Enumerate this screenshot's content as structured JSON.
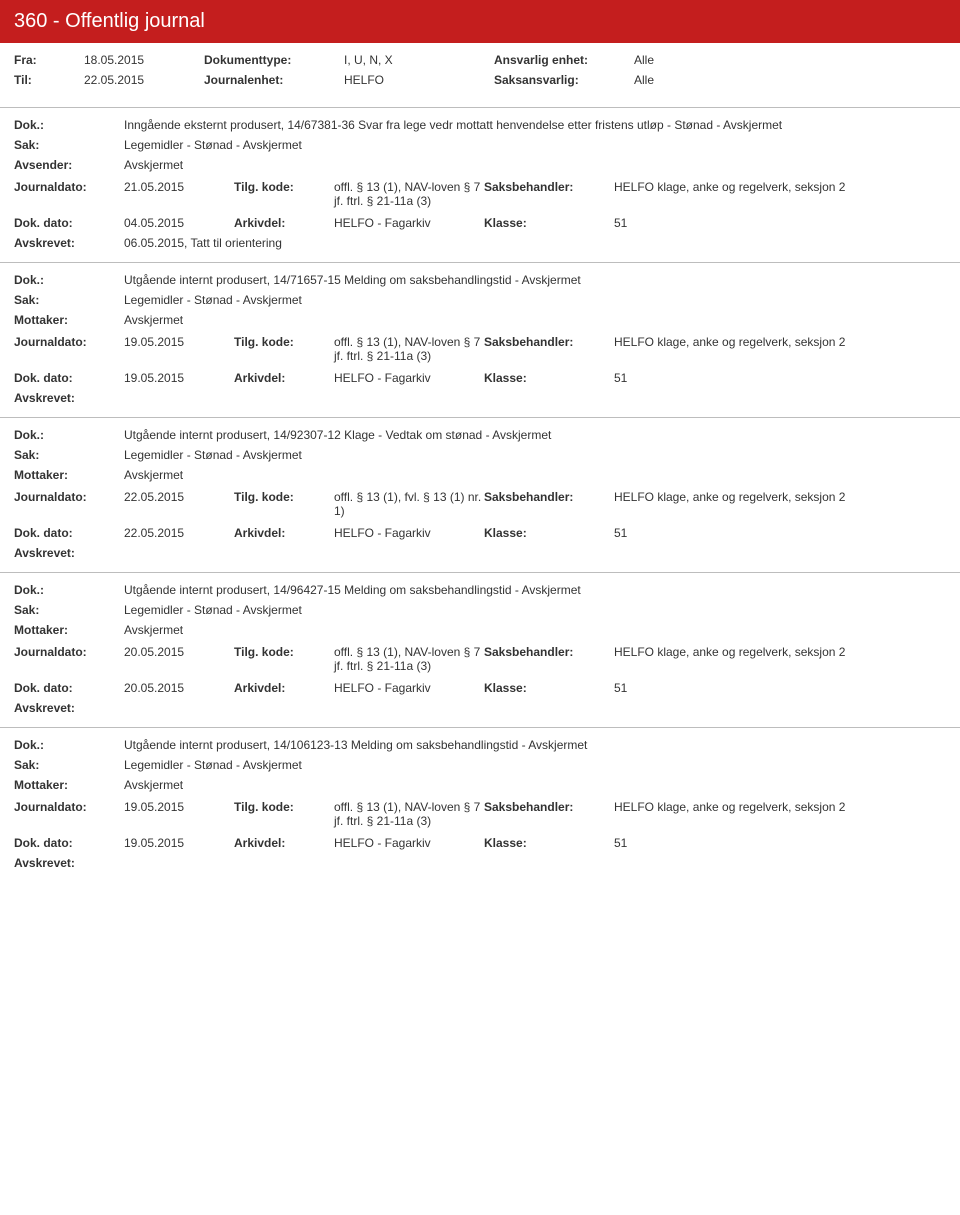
{
  "header": {
    "title": "360 - Offentlig journal"
  },
  "filters": {
    "fra_lbl": "Fra:",
    "fra_val": "18.05.2015",
    "til_lbl": "Til:",
    "til_val": "22.05.2015",
    "doktype_lbl": "Dokumenttype:",
    "doktype_val": "I, U, N, X",
    "journ_lbl": "Journalenhet:",
    "journ_val": "HELFO",
    "ansv_lbl": "Ansvarlig enhet:",
    "ansv_val": "Alle",
    "saksa_lbl": "Saksansvarlig:",
    "saksa_val": "Alle"
  },
  "labels": {
    "dok": "Dok.:",
    "sak": "Sak:",
    "avsender": "Avsender:",
    "mottaker": "Mottaker:",
    "journaldato": "Journaldato:",
    "tilgkode": "Tilg. kode:",
    "saksbeh": "Saksbehandler:",
    "dokdato": "Dok. dato:",
    "arkivdel": "Arkivdel:",
    "klasse": "Klasse:",
    "avskrevet": "Avskrevet:"
  },
  "entries": [
    {
      "dok": "Inngående eksternt produsert, 14/67381-36 Svar fra lege vedr mottatt henvendelse etter fristens utløp - Stønad - Avskjermet",
      "sak": "Legemidler - Stønad - Avskjermet",
      "party_lbl": "Avsender:",
      "party_val": "Avskjermet",
      "journaldato": "21.05.2015",
      "tilgkode": "offl. § 13 (1), NAV-loven § 7 jf. ftrl. § 21-11a (3)",
      "saksbeh": "HELFO klage, anke og regelverk, seksjon 2",
      "dokdato": "04.05.2015",
      "arkivdel": "HELFO - Fagarkiv",
      "klasse": "51",
      "avskrevet": "06.05.2015, Tatt til orientering"
    },
    {
      "dok": "Utgående internt produsert, 14/71657-15 Melding om saksbehandlingstid - Avskjermet",
      "sak": "Legemidler - Stønad - Avskjermet",
      "party_lbl": "Mottaker:",
      "party_val": "Avskjermet",
      "journaldato": "19.05.2015",
      "tilgkode": "offl. § 13 (1), NAV-loven § 7 jf. ftrl. § 21-11a (3)",
      "saksbeh": "HELFO klage, anke og regelverk, seksjon 2",
      "dokdato": "19.05.2015",
      "arkivdel": "HELFO - Fagarkiv",
      "klasse": "51",
      "avskrevet": ""
    },
    {
      "dok": "Utgående internt produsert, 14/92307-12 Klage - Vedtak om stønad - Avskjermet",
      "sak": "Legemidler - Stønad - Avskjermet",
      "party_lbl": "Mottaker:",
      "party_val": "Avskjermet",
      "journaldato": "22.05.2015",
      "tilgkode": "offl. § 13 (1), fvl. § 13 (1) nr. 1)",
      "saksbeh": "HELFO klage, anke og regelverk, seksjon 2",
      "dokdato": "22.05.2015",
      "arkivdel": "HELFO - Fagarkiv",
      "klasse": "51",
      "avskrevet": ""
    },
    {
      "dok": "Utgående internt produsert, 14/96427-15 Melding om saksbehandlingstid - Avskjermet",
      "sak": "Legemidler - Stønad - Avskjermet",
      "party_lbl": "Mottaker:",
      "party_val": "Avskjermet",
      "journaldato": "20.05.2015",
      "tilgkode": "offl. § 13 (1), NAV-loven § 7 jf. ftrl. § 21-11a (3)",
      "saksbeh": "HELFO klage, anke og regelverk, seksjon 2",
      "dokdato": "20.05.2015",
      "arkivdel": "HELFO - Fagarkiv",
      "klasse": "51",
      "avskrevet": ""
    },
    {
      "dok": "Utgående internt produsert, 14/106123-13 Melding om saksbehandlingstid - Avskjermet",
      "sak": "Legemidler - Stønad - Avskjermet",
      "party_lbl": "Mottaker:",
      "party_val": "Avskjermet",
      "journaldato": "19.05.2015",
      "tilgkode": "offl. § 13 (1), NAV-loven § 7 jf. ftrl. § 21-11a (3)",
      "saksbeh": "HELFO klage, anke og regelverk, seksjon 2",
      "dokdato": "19.05.2015",
      "arkivdel": "HELFO - Fagarkiv",
      "klasse": "51",
      "avskrevet": ""
    }
  ]
}
